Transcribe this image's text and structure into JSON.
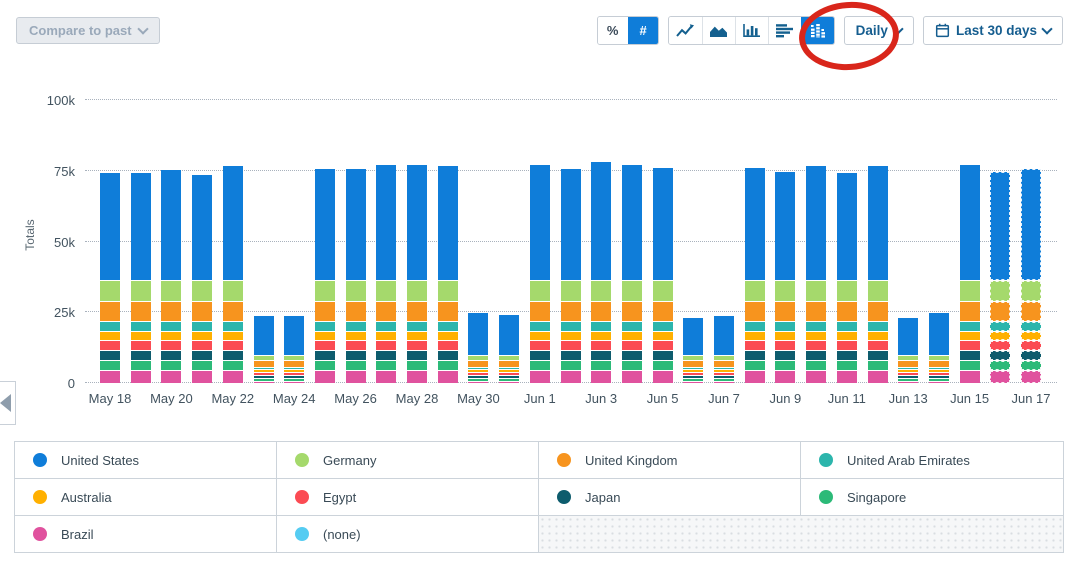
{
  "header": {
    "compare_button": {
      "label": "Compare to past"
    },
    "unit_toggle": [
      {
        "label": "%",
        "selected": false
      },
      {
        "label": "#",
        "selected": true
      }
    ],
    "chart_type_buttons": [
      {
        "icon": "line-chart",
        "selected": false
      },
      {
        "icon": "area-chart",
        "selected": false
      },
      {
        "icon": "bar-chart",
        "selected": false
      },
      {
        "icon": "horizontal-stacked-bar",
        "selected": false
      },
      {
        "icon": "stacked-column",
        "selected": true
      }
    ],
    "interval_dropdown": {
      "label": "Daily"
    },
    "date_range_dropdown": {
      "label": "Last 30 days",
      "icon": "calendar"
    },
    "annotation": {
      "type": "red-circle",
      "target": "stacked-column-button",
      "color": "#d9261b"
    }
  },
  "chart_data": {
    "type": "bar",
    "stacked": true,
    "ylabel": "Totals",
    "ylim": [
      0,
      100000
    ],
    "yticks": [
      {
        "value": 0,
        "label": "0"
      },
      {
        "value": 25000,
        "label": "25k"
      },
      {
        "value": 50000,
        "label": "50k"
      },
      {
        "value": 75000,
        "label": "75k"
      },
      {
        "value": 100000,
        "label": "100k"
      }
    ],
    "grid": "dotted-horizontal",
    "legend_position": "bottom",
    "categories": [
      "May 18",
      "May 19",
      "May 20",
      "May 21",
      "May 22",
      "May 23",
      "May 24",
      "May 25",
      "May 26",
      "May 27",
      "May 28",
      "May 29",
      "May 30",
      "May 31",
      "Jun 1",
      "Jun 2",
      "Jun 3",
      "Jun 4",
      "Jun 5",
      "Jun 6",
      "Jun 7",
      "Jun 8",
      "Jun 9",
      "Jun 10",
      "Jun 11",
      "Jun 12",
      "Jun 13",
      "Jun 14",
      "Jun 15",
      "Jun 16",
      "Jun 17"
    ],
    "x_labeled_every": 2,
    "partial_data_indices": [
      29,
      30
    ],
    "stack_order_bottom_to_top": [
      "Brazil",
      "Singapore",
      "Japan",
      "Egypt",
      "Australia",
      "United Arab Emirates",
      "United Kingdom",
      "Germany",
      "United States"
    ],
    "series": [
      {
        "name": "United States",
        "color": "#0f7dd9",
        "values": [
          38000,
          38000,
          39000,
          37500,
          40500,
          14000,
          14000,
          39500,
          39500,
          41000,
          41000,
          40500,
          15000,
          14500,
          41000,
          39500,
          42000,
          41000,
          40000,
          13500,
          14000,
          40000,
          38500,
          40500,
          38000,
          40500,
          13500,
          15000,
          41000,
          38500,
          39500
        ]
      },
      {
        "name": "Germany",
        "color": "#a5d96c",
        "values": [
          7600,
          7600,
          7600,
          7600,
          7600,
          1900,
          1900,
          7600,
          7600,
          7600,
          7600,
          7600,
          1900,
          1900,
          7600,
          7600,
          7600,
          7600,
          7600,
          1900,
          1900,
          7600,
          7600,
          7600,
          7600,
          7600,
          1900,
          1900,
          7600,
          7600,
          7600
        ]
      },
      {
        "name": "United Kingdom",
        "color": "#f7941e",
        "values": [
          7100,
          7100,
          7100,
          7100,
          7100,
          2400,
          2400,
          7100,
          7100,
          7100,
          7100,
          7100,
          2400,
          2400,
          7100,
          7100,
          7100,
          7100,
          7100,
          2400,
          2400,
          7100,
          7100,
          7100,
          7100,
          7100,
          2400,
          2400,
          7100,
          7100,
          7100
        ]
      },
      {
        "name": "United Arab Emirates",
        "color": "#2cb5ac",
        "values": [
          3300,
          3300,
          3300,
          3300,
          3300,
          900,
          900,
          3300,
          3300,
          3300,
          3300,
          3300,
          900,
          900,
          3300,
          3300,
          3300,
          3300,
          3300,
          900,
          900,
          3300,
          3300,
          3300,
          3300,
          3300,
          900,
          900,
          3300,
          3300,
          3300
        ]
      },
      {
        "name": "Australia",
        "color": "#ffb000",
        "values": [
          3300,
          3300,
          3300,
          3300,
          3300,
          900,
          900,
          3300,
          3300,
          3300,
          3300,
          3300,
          900,
          900,
          3300,
          3300,
          3300,
          3300,
          3300,
          900,
          900,
          3300,
          3300,
          3300,
          3300,
          3300,
          900,
          900,
          3300,
          3300,
          3300
        ]
      },
      {
        "name": "Egypt",
        "color": "#fb4b53",
        "values": [
          3400,
          3400,
          3400,
          3400,
          3400,
          1000,
          1000,
          3400,
          3400,
          3400,
          3400,
          3400,
          1000,
          1000,
          3400,
          3400,
          3400,
          3400,
          3400,
          1000,
          1000,
          3400,
          3400,
          3400,
          3400,
          3400,
          1000,
          1000,
          3400,
          3400,
          3400
        ]
      },
      {
        "name": "Japan",
        "color": "#0d5c6d",
        "values": [
          3600,
          3600,
          3600,
          3600,
          3600,
          1000,
          1000,
          3600,
          3600,
          3600,
          3600,
          3600,
          1000,
          1000,
          3600,
          3600,
          3600,
          3600,
          3600,
          1000,
          1000,
          3600,
          3600,
          3600,
          3600,
          3600,
          1000,
          1000,
          3600,
          3600,
          3600
        ]
      },
      {
        "name": "Singapore",
        "color": "#2cba78",
        "values": [
          3600,
          3600,
          3600,
          3600,
          3600,
          1100,
          1100,
          3600,
          3600,
          3600,
          3600,
          3600,
          1100,
          1100,
          3600,
          3600,
          3600,
          3600,
          3600,
          1100,
          1100,
          3600,
          3600,
          3600,
          3600,
          3600,
          1100,
          1100,
          3600,
          3600,
          3600
        ]
      },
      {
        "name": "Brazil",
        "color": "#e0529e",
        "values": [
          4600,
          4600,
          4600,
          4600,
          4600,
          800,
          800,
          4600,
          4600,
          4600,
          4600,
          4600,
          800,
          800,
          4600,
          4600,
          4600,
          4600,
          4600,
          800,
          800,
          4600,
          4600,
          4600,
          4600,
          4600,
          800,
          800,
          4600,
          4600,
          4600
        ]
      },
      {
        "name": "(none)",
        "color": "#55ccf2",
        "values": [
          0,
          0,
          0,
          0,
          0,
          0,
          0,
          0,
          0,
          0,
          0,
          0,
          0,
          0,
          0,
          0,
          0,
          0,
          0,
          0,
          0,
          0,
          0,
          0,
          0,
          0,
          0,
          0,
          0,
          0,
          0
        ]
      }
    ]
  },
  "legend": {
    "items": [
      {
        "label": "United States",
        "color": "#0f7dd9"
      },
      {
        "label": "Germany",
        "color": "#a5d96c"
      },
      {
        "label": "United Kingdom",
        "color": "#f7941e"
      },
      {
        "label": "United Arab Emirates",
        "color": "#2cb5ac"
      },
      {
        "label": "Australia",
        "color": "#ffb000"
      },
      {
        "label": "Egypt",
        "color": "#fb4b53"
      },
      {
        "label": "Japan",
        "color": "#0d5c6d"
      },
      {
        "label": "Singapore",
        "color": "#2cba78"
      },
      {
        "label": "Brazil",
        "color": "#e0529e"
      },
      {
        "label": "(none)",
        "color": "#55ccf2"
      }
    ]
  }
}
